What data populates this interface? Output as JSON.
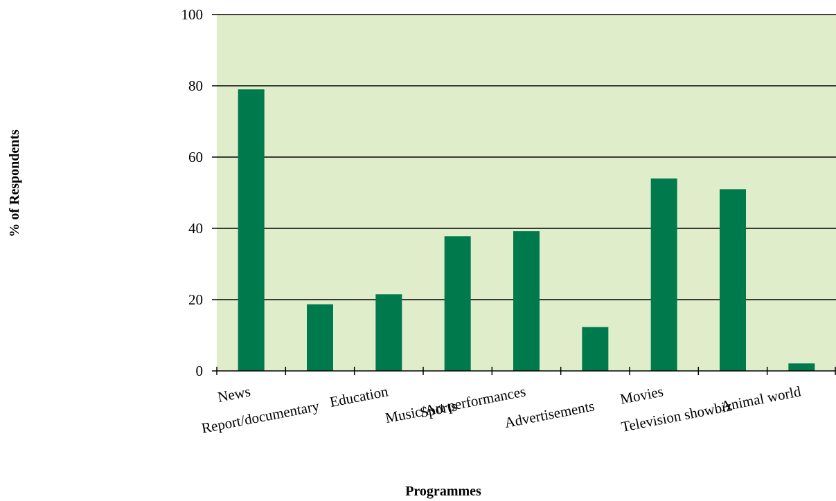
{
  "chart_data": {
    "type": "bar",
    "categories": [
      "News",
      "Report/documentary",
      "Education",
      "Sports",
      "Music/Art performances",
      "Advertisements",
      "Movies",
      "Television showbiz",
      "Animal world"
    ],
    "values": [
      79,
      18.7,
      21.5,
      37.8,
      39.2,
      12.3,
      54,
      51,
      2.1
    ],
    "title": "",
    "xlabel": "Programmes",
    "ylabel": "% of Respondents",
    "ylim": [
      0,
      100
    ],
    "yticks": [
      0,
      20,
      40,
      60,
      80,
      100
    ],
    "grid": true,
    "legend": "none",
    "colors": {
      "bar": "#007A4D",
      "plot_background": "#E0EDCB",
      "gridline": "#000000"
    }
  }
}
